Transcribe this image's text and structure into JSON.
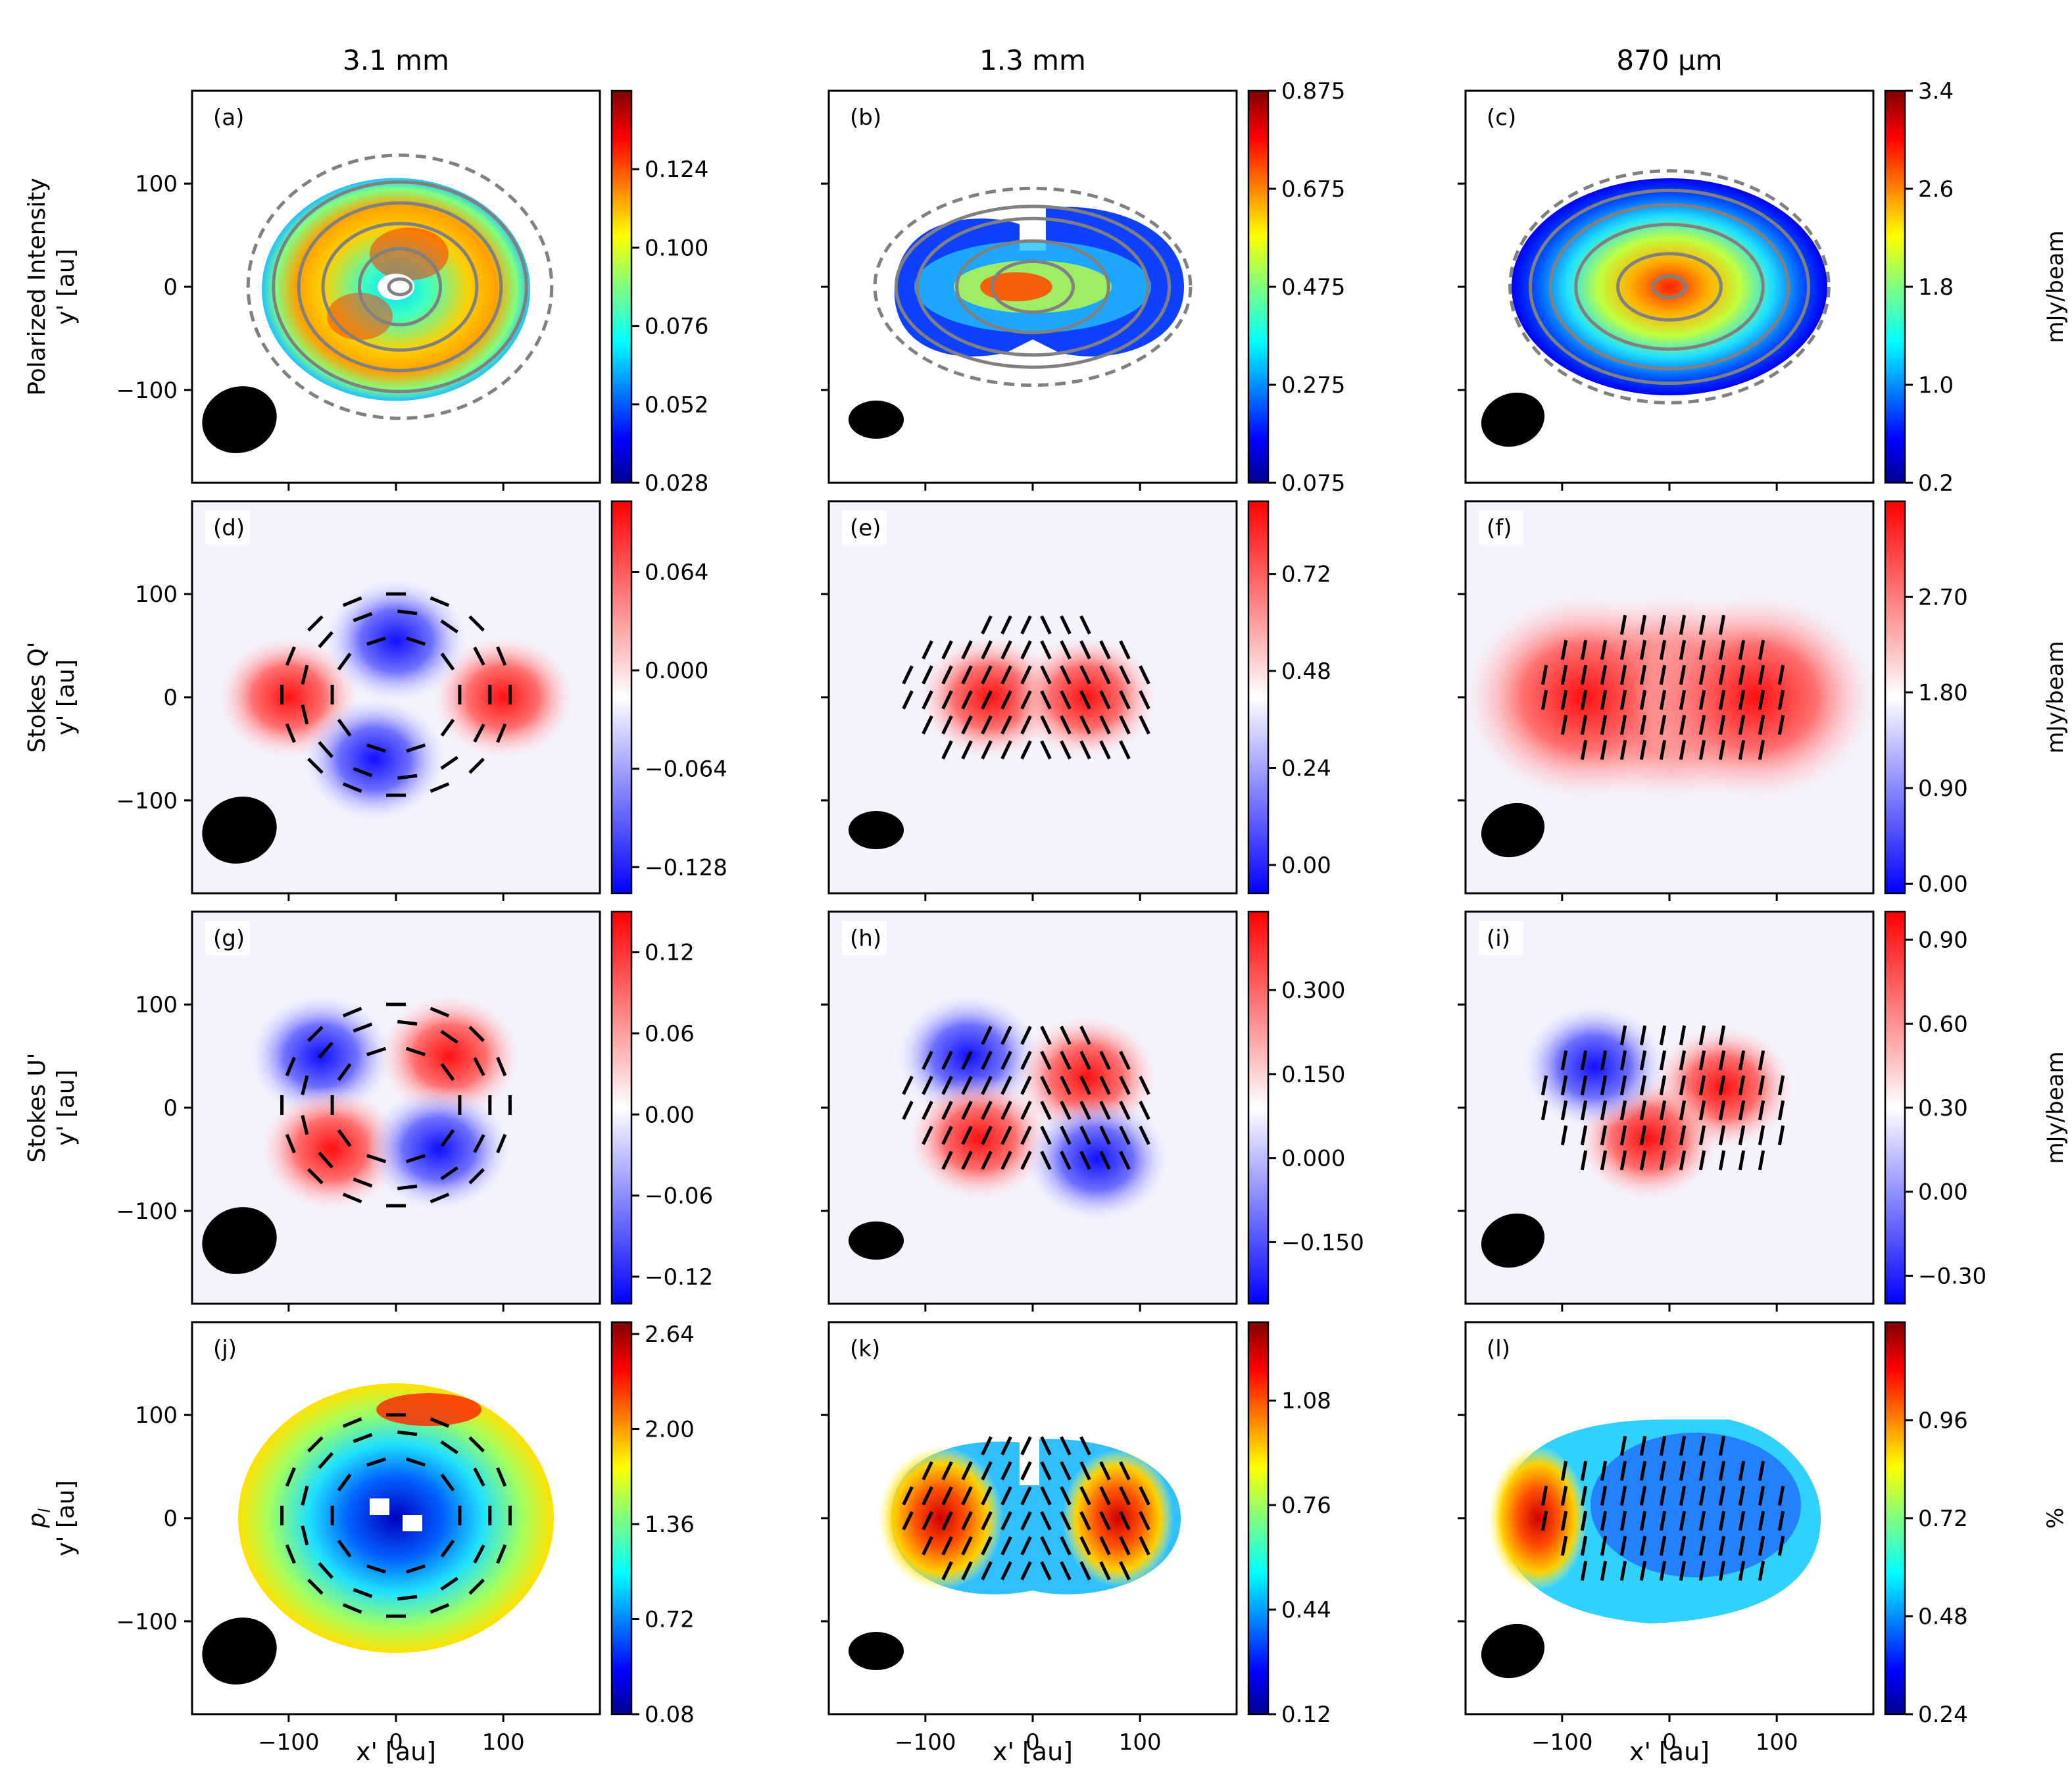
{
  "columns": [
    "3.1 mm",
    "1.3 mm",
    "870 $\\mu$m"
  ],
  "column_titles": [
    "3.1 mm",
    "1.3 mm",
    "870 μm"
  ],
  "row_labels": [
    [
      "Polarized Intensity",
      "y' [au]"
    ],
    [
      "Stokes Q'",
      "y' [au]"
    ],
    [
      "Stokes U'",
      "y' [au]"
    ],
    [
      "p",
      "y' [au]"
    ]
  ],
  "row_label_p_subscript": "l",
  "xlabel": "x' [au]",
  "x_ticks": [
    "−100",
    "0",
    "100"
  ],
  "y_ticks": [
    "100",
    "0",
    "−100"
  ],
  "units": {
    "rows_1_3": "mJy/beam",
    "row_4": "%"
  },
  "panels": [
    {
      "letter": "(a)",
      "colorbar": {
        "cmap": "jet",
        "ticks": [
          "0.124",
          "0.100",
          "0.076",
          "0.052",
          "0.028"
        ],
        "range": [
          0.028,
          0.148
        ]
      }
    },
    {
      "letter": "(b)",
      "colorbar": {
        "cmap": "jet",
        "ticks": [
          "0.875",
          "0.675",
          "0.475",
          "0.275",
          "0.075"
        ],
        "range": [
          0.075,
          0.875
        ]
      }
    },
    {
      "letter": "(c)",
      "colorbar": {
        "cmap": "jet",
        "ticks": [
          "3.4",
          "2.6",
          "1.8",
          "1.0",
          "0.2"
        ],
        "range": [
          0.2,
          3.4
        ]
      },
      "unit": "mJy/beam"
    },
    {
      "letter": "(d)",
      "colorbar": {
        "cmap": "bwr",
        "ticks": [
          "0.064",
          "0.000",
          "−0.064",
          "−0.128"
        ],
        "range": [
          -0.145,
          0.11
        ]
      }
    },
    {
      "letter": "(e)",
      "colorbar": {
        "cmap": "bwr",
        "ticks": [
          "0.72",
          "0.48",
          "0.24",
          "0.00"
        ],
        "range": [
          -0.07,
          0.9
        ]
      }
    },
    {
      "letter": "(f)",
      "colorbar": {
        "cmap": "bwr",
        "ticks": [
          "2.70",
          "1.80",
          "0.90",
          "0.00"
        ],
        "range": [
          -0.09,
          3.6
        ]
      },
      "unit": "mJy/beam"
    },
    {
      "letter": "(g)",
      "colorbar": {
        "cmap": "bwr",
        "ticks": [
          "0.12",
          "0.06",
          "0.00",
          "−0.06",
          "−0.12"
        ],
        "range": [
          -0.14,
          0.15
        ]
      }
    },
    {
      "letter": "(h)",
      "colorbar": {
        "cmap": "bwr",
        "ticks": [
          "0.300",
          "0.150",
          "0.000",
          "−0.150"
        ],
        "range": [
          -0.26,
          0.44
        ]
      }
    },
    {
      "letter": "(i)",
      "colorbar": {
        "cmap": "bwr",
        "ticks": [
          "0.90",
          "0.60",
          "0.30",
          "0.00",
          "−0.30"
        ],
        "range": [
          -0.4,
          1.0
        ]
      },
      "unit": "mJy/beam"
    },
    {
      "letter": "(j)",
      "colorbar": {
        "cmap": "jet",
        "ticks": [
          "2.64",
          "2.00",
          "1.36",
          "0.72",
          "0.08"
        ],
        "range": [
          0.08,
          2.72
        ]
      }
    },
    {
      "letter": "(k)",
      "colorbar": {
        "cmap": "jet",
        "ticks": [
          "1.08",
          "0.76",
          "0.44",
          "0.12"
        ],
        "range": [
          0.12,
          1.32
        ]
      }
    },
    {
      "letter": "(l)",
      "colorbar": {
        "cmap": "jet",
        "ticks": [
          "0.96",
          "0.72",
          "0.48",
          "0.24"
        ],
        "range": [
          0.24,
          1.2
        ]
      },
      "unit": "%"
    }
  ],
  "colors": {
    "contour": "#808080",
    "vector": "#000000",
    "beam": "#000000"
  }
}
